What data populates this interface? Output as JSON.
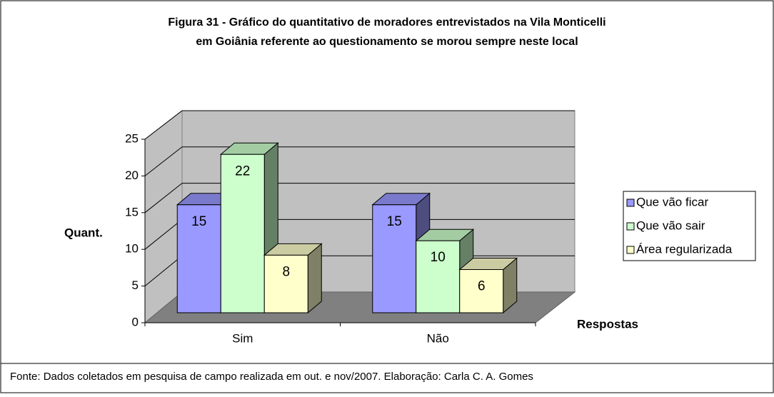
{
  "chart_data": {
    "type": "bar3d",
    "title": [
      "Figura 31 -  Gráfico do quantitativo de moradores entrevistados na Vila Monticelli",
      "em Goiânia referente ao questionamento se morou sempre neste local"
    ],
    "x_label": "Respostas",
    "y_label": "Quant.",
    "categories": [
      "Sim",
      "Não"
    ],
    "series": [
      {
        "name": "Que vão ficar",
        "color": "#9999ff",
        "values": [
          15,
          15
        ]
      },
      {
        "name": "Que vão sair",
        "color": "#ccffcc",
        "values": [
          22,
          10
        ]
      },
      {
        "name": "Área regularizada",
        "color": "#ffffcc",
        "values": [
          8,
          6
        ]
      }
    ],
    "ylim": [
      0,
      25
    ],
    "yticks": [
      0,
      5,
      10,
      15,
      20,
      25
    ],
    "grid": true,
    "legend": "right",
    "source": "Fonte: Dados coletados em pesquisa  de campo realizada em out. e nov/2007. Elaboração: Carla C. A. Gomes"
  }
}
